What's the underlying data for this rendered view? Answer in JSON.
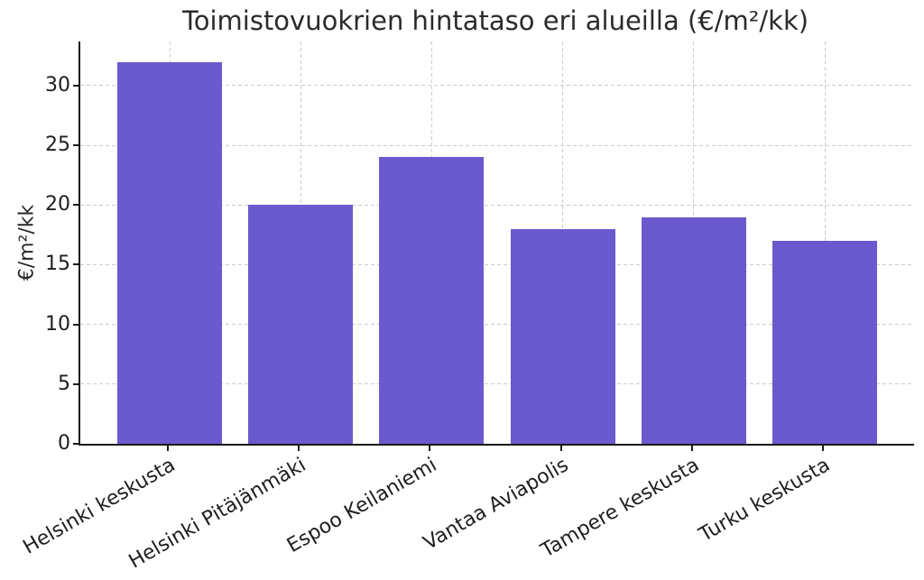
{
  "figure": {
    "title": "Toimistovuokrien hintataso eri alueilla (€/m²/kk)",
    "y_axis_label": "€/m²/kk"
  },
  "chart_data": {
    "type": "bar",
    "title": "Toimistovuokrien hintataso eri alueilla (€/m²/kk)",
    "categories": [
      "Helsinki keskusta",
      "Helsinki Pitäjänmäki",
      "Espoo Keilaniemi",
      "Vantaa Aviapolis",
      "Tampere keskusta",
      "Turku keskusta"
    ],
    "values": [
      32,
      20,
      24,
      18,
      19,
      17
    ],
    "xlabel": "",
    "ylabel": "€/m²/kk",
    "ylim": [
      0,
      33.7
    ],
    "yticks": [
      0,
      5,
      10,
      15,
      20,
      25,
      30
    ],
    "x_tick_rotation_deg": 30,
    "grid": true,
    "grid_axes": "both",
    "grid_line_style": "dashed",
    "legend": "none",
    "colors": {
      "bar": "#6a5acd",
      "grid": "#cccccc",
      "axis": "#1a1a1a",
      "text": "#262626",
      "background": "#ffffff"
    }
  }
}
